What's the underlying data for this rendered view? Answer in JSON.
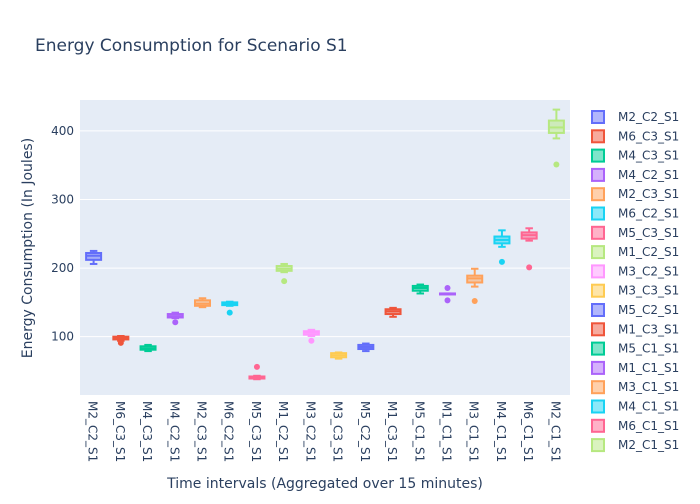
{
  "chart_data": {
    "type": "box",
    "title": "Energy Consumption for Scenario S1",
    "xlabel": "Time intervals (Aggregated over 15 minutes)",
    "ylabel": "Energy Consumption (In Joules)",
    "ylim": [
      15,
      445
    ],
    "yticks": [
      100,
      200,
      300,
      400
    ],
    "grid": true,
    "legend_position": "right",
    "categories": [
      "M2_C2_S1",
      "M6_C3_S1",
      "M4_C3_S1",
      "M4_C2_S1",
      "M2_C3_S1",
      "M6_C2_S1",
      "M5_C3_S1",
      "M1_C2_S1",
      "M3_C2_S1",
      "M3_C3_S1",
      "M5_C2_S1",
      "M1_C3_S1",
      "M5_C1_S1",
      "M1_C1_S1",
      "M3_C1_S1",
      "M4_C1_S1",
      "M6_C1_S1",
      "M2_C1_S1"
    ],
    "series": [
      {
        "name": "M2_C2_S1",
        "color": "#636efa",
        "min": 206,
        "q1": 212,
        "median": 218,
        "q3": 222,
        "max": 225,
        "outliers": []
      },
      {
        "name": "M6_C3_S1",
        "color": "#EF553B",
        "min": 94,
        "q1": 96,
        "median": 98,
        "q3": 100,
        "max": 101,
        "outliers": [
          91
        ]
      },
      {
        "name": "M4_C3_S1",
        "color": "#00cc96",
        "min": 79,
        "q1": 81,
        "median": 83,
        "q3": 86,
        "max": 88,
        "outliers": []
      },
      {
        "name": "M4_C2_S1",
        "color": "#ab63fa",
        "min": 127,
        "q1": 128,
        "median": 130,
        "q3": 133,
        "max": 135,
        "outliers": [
          121
        ]
      },
      {
        "name": "M2_C3_S1",
        "color": "#FFA15A",
        "min": 143,
        "q1": 145,
        "median": 148,
        "q3": 153,
        "max": 156,
        "outliers": []
      },
      {
        "name": "M6_C2_S1",
        "color": "#19d3f3",
        "min": 145,
        "q1": 146,
        "median": 148,
        "q3": 150,
        "max": 151,
        "outliers": [
          135
        ]
      },
      {
        "name": "M5_C3_S1",
        "color": "#FF6692",
        "min": 38,
        "q1": 39,
        "median": 41,
        "q3": 42,
        "max": 43,
        "outliers": [
          56
        ]
      },
      {
        "name": "M1_C2_S1",
        "color": "#B6E880",
        "min": 194,
        "q1": 196,
        "median": 199,
        "q3": 203,
        "max": 206,
        "outliers": [
          181
        ]
      },
      {
        "name": "M3_C2_S1",
        "color": "#FF97FF",
        "min": 101,
        "q1": 103,
        "median": 106,
        "q3": 108,
        "max": 110,
        "outliers": [
          94
        ]
      },
      {
        "name": "M3_C3_S1",
        "color": "#FECB52",
        "min": 68,
        "q1": 70,
        "median": 73,
        "q3": 76,
        "max": 77,
        "outliers": []
      },
      {
        "name": "M5_C2_S1",
        "color": "#636efa",
        "min": 79,
        "q1": 82,
        "median": 85,
        "q3": 88,
        "max": 90,
        "outliers": []
      },
      {
        "name": "M1_C3_S1",
        "color": "#EF553B",
        "min": 129,
        "q1": 133,
        "median": 137,
        "q3": 140,
        "max": 142,
        "outliers": []
      },
      {
        "name": "M5_C1_S1",
        "color": "#00cc96",
        "min": 163,
        "q1": 167,
        "median": 171,
        "q3": 174,
        "max": 176,
        "outliers": []
      },
      {
        "name": "M1_C1_S1",
        "color": "#ab63fa",
        "min": 162,
        "q1": 162,
        "median": 163,
        "q3": 163,
        "max": 163,
        "outliers": [
          153,
          171
        ]
      },
      {
        "name": "M3_C1_S1",
        "color": "#FFA15A",
        "min": 173,
        "q1": 179,
        "median": 185,
        "q3": 189,
        "max": 199,
        "outliers": [
          152
        ]
      },
      {
        "name": "M4_C1_S1",
        "color": "#19d3f3",
        "min": 231,
        "q1": 236,
        "median": 241,
        "q3": 246,
        "max": 255,
        "outliers": [
          209
        ]
      },
      {
        "name": "M6_C1_S1",
        "color": "#FF6692",
        "min": 240,
        "q1": 243,
        "median": 248,
        "q3": 252,
        "max": 258,
        "outliers": [
          201
        ]
      },
      {
        "name": "M2_C1_S1",
        "color": "#B6E880",
        "min": 389,
        "q1": 397,
        "median": 405,
        "q3": 415,
        "max": 431,
        "outliers": [
          351
        ]
      }
    ]
  }
}
